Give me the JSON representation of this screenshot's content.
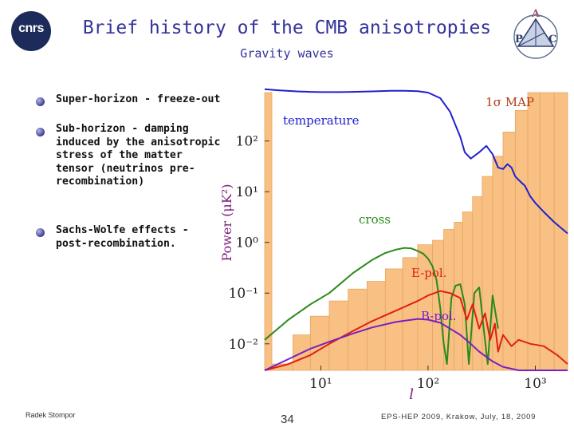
{
  "header": {
    "title": "Brief history of the CMB anisotropies",
    "subtitle": "Gravity waves",
    "left_logo_text": "cnrs",
    "right_logo_letters": [
      "A",
      "P",
      "C"
    ]
  },
  "bullets": [
    {
      "text": "Super-horizon - freeze-out"
    },
    {
      "text": "Sub-horizon - damping induced by the anisotropic stress of the matter tensor (neutrinos pre-recombination)"
    },
    {
      "text": "Sachs-Wolfe effects - post-recombination."
    }
  ],
  "footer": {
    "author": "Radek Stompor",
    "page_number": "34",
    "event": "EPS-HEP 2009, Krakow, July, 18, 2009"
  },
  "colors": {
    "title": "#333399",
    "bars": "#f8c083",
    "temperature": "#2020d0",
    "cross": "#2a8a1a",
    "epol": "#e02010",
    "bpol": "#7a1fc0",
    "axis_label": "#7a1f7a"
  },
  "chart_data": {
    "type": "line",
    "title": "",
    "legend_note": "1σ MAP",
    "xlabel": "l",
    "ylabel": "Power (μK²)",
    "xscale": "log",
    "yscale": "log",
    "xlim": [
      3,
      2000
    ],
    "ylim": [
      0.003,
      2000
    ],
    "x_ticks": [
      {
        "value": 10,
        "label": "10¹"
      },
      {
        "value": 100,
        "label": "10²"
      },
      {
        "value": 1000,
        "label": "10³"
      }
    ],
    "y_ticks": [
      {
        "value": 100,
        "label": "10²"
      },
      {
        "value": 10,
        "label": "10¹"
      },
      {
        "value": 1,
        "label": "10⁰"
      },
      {
        "value": 0.1,
        "label": "10⁻¹"
      },
      {
        "value": 0.01,
        "label": "10⁻²"
      }
    ],
    "bars": [
      {
        "l0": 2.2,
        "l1": 3.5,
        "top": 900
      },
      {
        "l0": 3.5,
        "l1": 5.5,
        "top": 0.004
      },
      {
        "l0": 5.5,
        "l1": 8,
        "top": 0.015
      },
      {
        "l0": 8,
        "l1": 12,
        "top": 0.035
      },
      {
        "l0": 12,
        "l1": 18,
        "top": 0.07
      },
      {
        "l0": 18,
        "l1": 27,
        "top": 0.12
      },
      {
        "l0": 27,
        "l1": 40,
        "top": 0.17
      },
      {
        "l0": 40,
        "l1": 58,
        "top": 0.3
      },
      {
        "l0": 58,
        "l1": 80,
        "top": 0.5
      },
      {
        "l0": 80,
        "l1": 110,
        "top": 0.9
      },
      {
        "l0": 110,
        "l1": 140,
        "top": 1.1
      },
      {
        "l0": 140,
        "l1": 175,
        "top": 1.8
      },
      {
        "l0": 175,
        "l1": 210,
        "top": 2.5
      },
      {
        "l0": 210,
        "l1": 260,
        "top": 4
      },
      {
        "l0": 260,
        "l1": 320,
        "top": 8
      },
      {
        "l0": 320,
        "l1": 400,
        "top": 20
      },
      {
        "l0": 400,
        "l1": 500,
        "top": 50
      },
      {
        "l0": 500,
        "l1": 650,
        "top": 150
      },
      {
        "l0": 650,
        "l1": 850,
        "top": 400
      },
      {
        "l0": 850,
        "l1": 1100,
        "top": 900
      },
      {
        "l0": 1100,
        "l1": 1500,
        "top": 900
      },
      {
        "l0": 1500,
        "l1": 2000,
        "top": 900
      }
    ],
    "series": [
      {
        "name": "temperature",
        "x": [
          3,
          4,
          6,
          8,
          10,
          15,
          20,
          30,
          45,
          60,
          80,
          100,
          130,
          160,
          200,
          220,
          250,
          300,
          350,
          400,
          450,
          500,
          550,
          600,
          650,
          700,
          800,
          900,
          1000,
          1200,
          1500,
          2000
        ],
        "y": [
          1050,
          1000,
          950,
          930,
          920,
          920,
          930,
          950,
          980,
          980,
          960,
          900,
          700,
          380,
          120,
          60,
          45,
          60,
          80,
          55,
          30,
          28,
          35,
          30,
          20,
          17,
          13,
          8,
          6,
          4,
          2.5,
          1.5
        ]
      },
      {
        "name": "cross",
        "x": [
          3,
          5,
          8,
          12,
          20,
          30,
          40,
          50,
          60,
          70,
          80,
          90,
          100,
          110,
          120,
          130,
          140,
          150,
          165,
          180,
          200,
          220,
          240,
          270,
          300,
          330,
          360,
          400,
          450
        ],
        "y": [
          0.012,
          0.03,
          0.06,
          0.1,
          0.25,
          0.45,
          0.62,
          0.72,
          0.78,
          0.76,
          0.68,
          0.6,
          0.48,
          0.34,
          0.18,
          0.05,
          0.01,
          0.004,
          0.08,
          0.14,
          0.15,
          0.06,
          0.004,
          0.1,
          0.13,
          0.02,
          0.004,
          0.09,
          0.02
        ]
      },
      {
        "name": "E-pol.",
        "x": [
          3,
          5,
          8,
          12,
          20,
          30,
          50,
          80,
          100,
          130,
          160,
          200,
          230,
          260,
          300,
          340,
          380,
          420,
          450,
          500,
          600,
          700,
          900,
          1200,
          1600,
          2000
        ],
        "y": [
          0.003,
          0.004,
          0.006,
          0.01,
          0.018,
          0.028,
          0.045,
          0.07,
          0.09,
          0.11,
          0.1,
          0.08,
          0.03,
          0.06,
          0.02,
          0.04,
          0.012,
          0.025,
          0.007,
          0.015,
          0.009,
          0.012,
          0.01,
          0.009,
          0.006,
          0.004
        ]
      },
      {
        "name": "B-pol.",
        "x": [
          3,
          5,
          8,
          12,
          20,
          30,
          50,
          80,
          100,
          130,
          160,
          200,
          250,
          300,
          400,
          500,
          700,
          1000,
          1500,
          2000
        ],
        "y": [
          0.003,
          0.005,
          0.008,
          0.011,
          0.016,
          0.021,
          0.027,
          0.031,
          0.03,
          0.026,
          0.02,
          0.015,
          0.01,
          0.007,
          0.0045,
          0.0035,
          0.003,
          0.003,
          0.003,
          0.003
        ]
      }
    ]
  }
}
